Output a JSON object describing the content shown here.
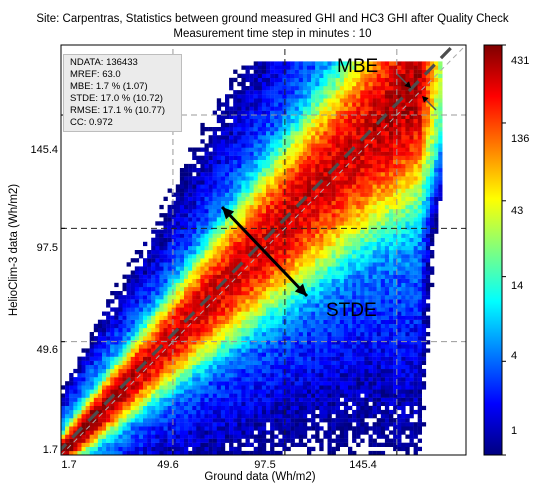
{
  "chart_data": {
    "type": "heatmap",
    "title": "Site: Carpentras, Statistics between ground measured GHI and HC3 GHI after Quality Check",
    "subtitle": "Measurement time step in minutes : 10",
    "xlabel": "Ground data (Wh/m2)",
    "ylabel": "HelioClim-3 data (Wh/m2)",
    "xticks": [
      "1.7",
      "49.6",
      "97.5",
      "145.4"
    ],
    "yticks": [
      "1.7",
      "49.6",
      "97.5",
      "145.4"
    ],
    "xlim": [
      1.7,
      175
    ],
    "ylim": [
      1.7,
      175
    ],
    "reference_lines": [
      49.6,
      97.5,
      145.4
    ],
    "colorbar": {
      "scale": "log",
      "ticks": [
        "1",
        "4",
        "14",
        "43",
        "136",
        "431"
      ],
      "range": [
        1,
        431
      ],
      "colors": [
        "#00007f",
        "#0000ff",
        "#007fff",
        "#00ffff",
        "#7fff7f",
        "#ffff00",
        "#ff7f00",
        "#ff0000",
        "#7f0000"
      ]
    },
    "stats": [
      "NDATA: 136433",
      "MREF:  63.0",
      "MBE:  1.7 % (1.07)",
      "STDE:  17.0 % (10.72)",
      "RMSE:  17.1 % (10.77)",
      "CC:   0.972"
    ],
    "annotations": {
      "mbe": "MBE",
      "stde": "STDE"
    },
    "density_model": {
      "slope": 1.017,
      "offset": 1.07,
      "spread": 10.72,
      "max_count": 431
    }
  }
}
